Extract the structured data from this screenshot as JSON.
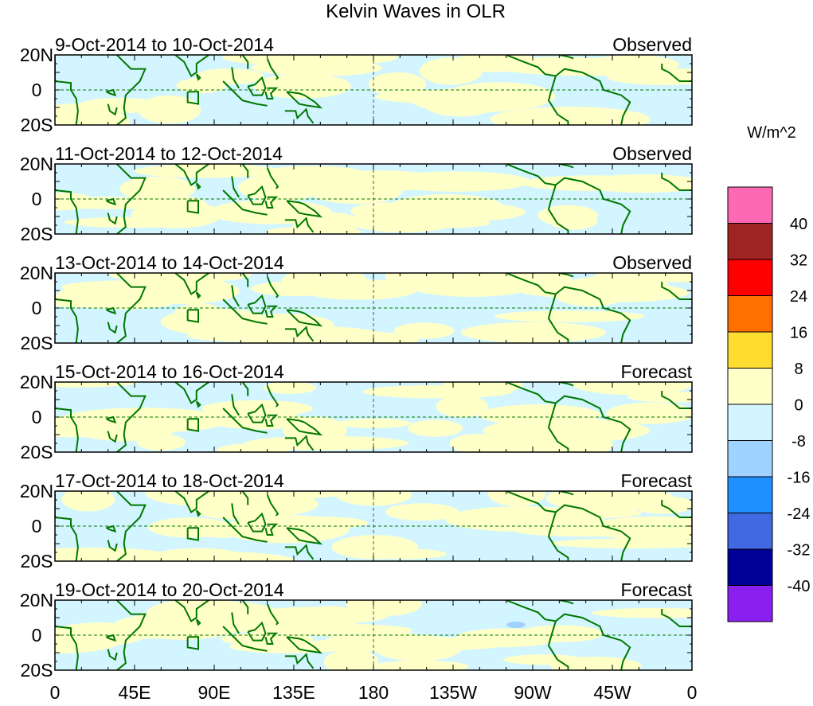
{
  "title": "Kelvin Waves in OLR",
  "units": "W/m^2",
  "lat_labels": [
    "20N",
    "0",
    "20S"
  ],
  "lon_labels": [
    "0",
    "45E",
    "90E",
    "135E",
    "180",
    "135W",
    "90W",
    "45W",
    "0"
  ],
  "panels": [
    {
      "dates": "9-Oct-2014 to 10-Oct-2014",
      "kind": "Observed"
    },
    {
      "dates": "11-Oct-2014 to 12-Oct-2014",
      "kind": "Observed"
    },
    {
      "dates": "13-Oct-2014 to 14-Oct-2014",
      "kind": "Observed"
    },
    {
      "dates": "15-Oct-2014 to 16-Oct-2014",
      "kind": "Forecast"
    },
    {
      "dates": "17-Oct-2014 to 18-Oct-2014",
      "kind": "Forecast"
    },
    {
      "dates": "19-Oct-2014 to 20-Oct-2014",
      "kind": "Forecast"
    }
  ],
  "colorbar": {
    "labels": [
      "40",
      "32",
      "24",
      "16",
      "8",
      "0",
      "-8",
      "-16",
      "-24",
      "-32",
      "-40"
    ],
    "colors": [
      "#ff69b4",
      "#a02424",
      "#ff0000",
      "#ff7000",
      "#ffdd30",
      "#ffffc8",
      "#d2f5ff",
      "#a0d2ff",
      "#1e90ff",
      "#4169e1",
      "#000096",
      "#8a20f0"
    ]
  },
  "coast_color": "#007800"
}
